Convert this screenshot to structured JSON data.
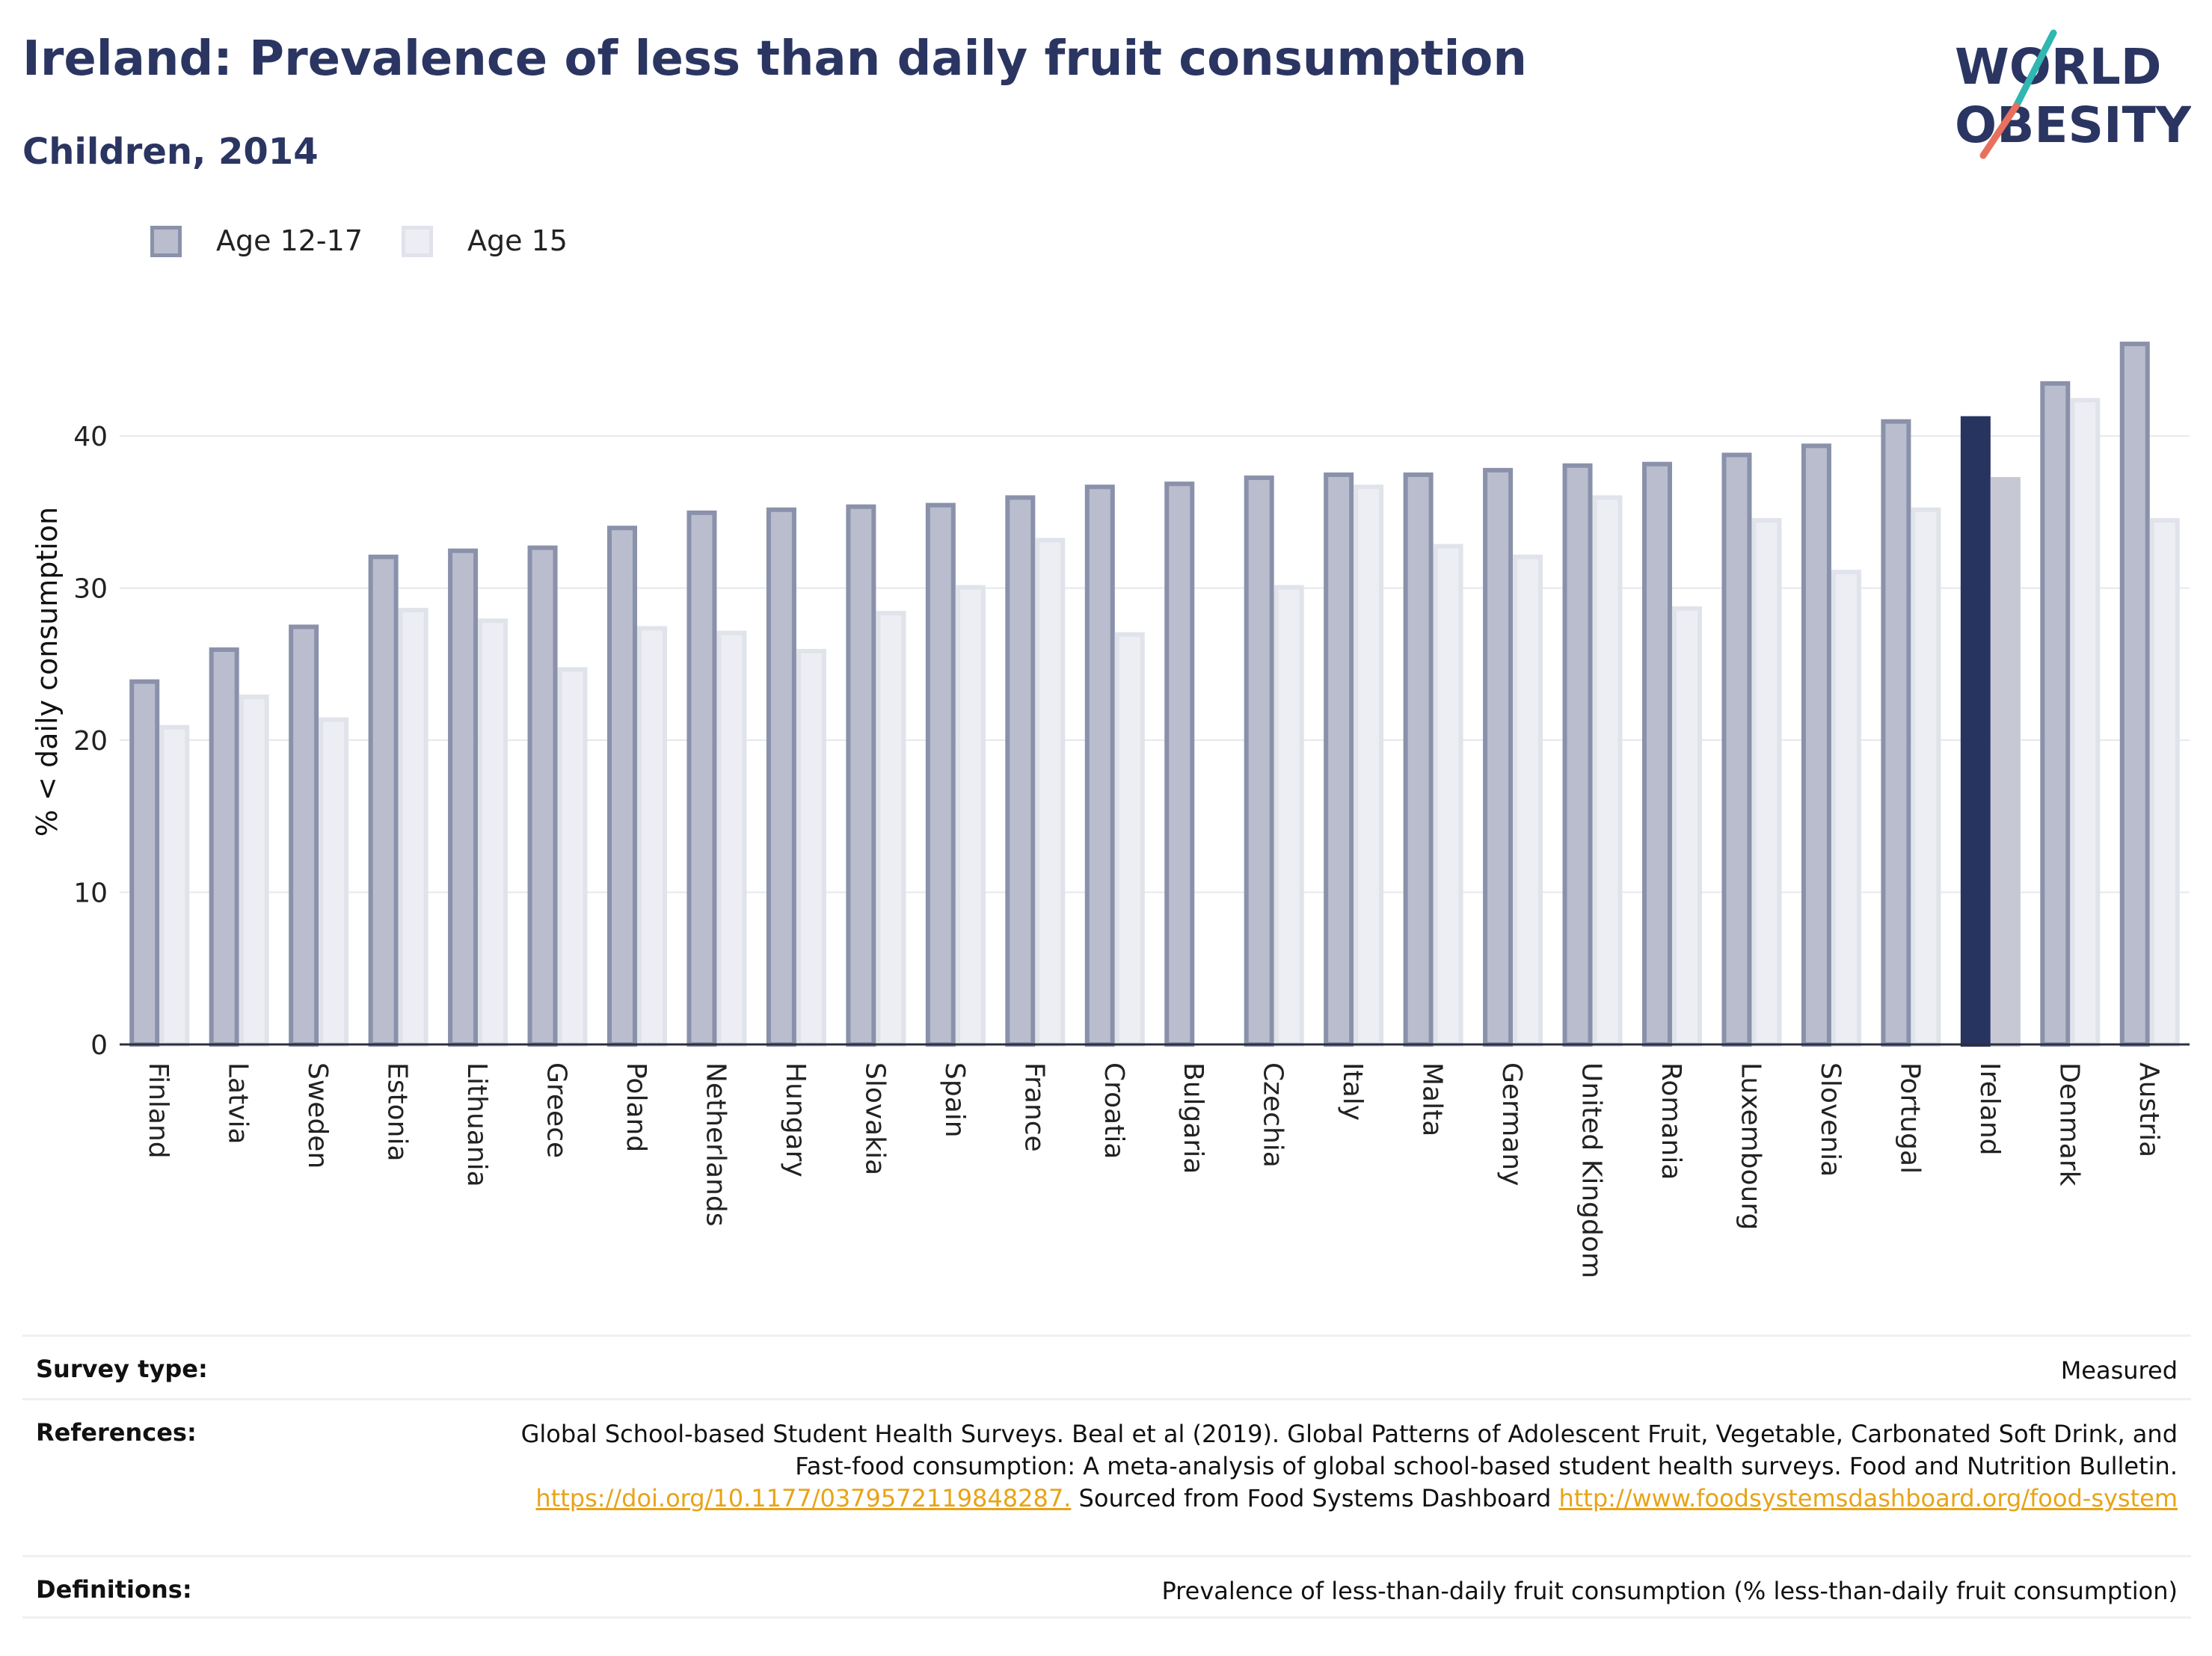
{
  "header": {
    "title": "Ireland: Prevalence of less than daily fruit consumption",
    "subtitle": "Children, 2014",
    "logo_line1": "WORLD",
    "logo_line2": "OBESITY"
  },
  "colors": {
    "title": "#2b3562",
    "series_age_12_17_fill": "#b9bdcd",
    "series_age_12_17_stroke": "#8a91aa",
    "series_age_15_fill": "#eceef3",
    "series_age_15_stroke": "#e0e3ea",
    "highlight_age_12_17": "#27345f",
    "highlight_age_15": "#c6c9d4",
    "logo_teal": "#2fb7b0",
    "logo_coral": "#e8705c",
    "link": "#e8a317"
  },
  "chart_data": {
    "type": "bar",
    "ylabel": "% < daily consumption",
    "xlabel": "",
    "ylim": [
      0,
      49
    ],
    "yticks": [
      0,
      10,
      20,
      30,
      40
    ],
    "grid": true,
    "legend_position": "top-left",
    "highlight_category": "Ireland",
    "categories": [
      "Finland",
      "Latvia",
      "Sweden",
      "Estonia",
      "Lithuania",
      "Greece",
      "Poland",
      "Netherlands",
      "Hungary",
      "Slovakia",
      "Spain",
      "France",
      "Croatia",
      "Bulgaria",
      "Czechia",
      "Italy",
      "Malta",
      "Germany",
      "United Kingdom",
      "Romania",
      "Luxembourg",
      "Slovenia",
      "Portugal",
      "Ireland",
      "Denmark",
      "Austria"
    ],
    "series": [
      {
        "name": "Age 12-17",
        "values": [
          24.0,
          26.1,
          27.6,
          32.2,
          32.6,
          32.8,
          34.1,
          35.1,
          35.3,
          35.5,
          35.6,
          36.1,
          36.8,
          37.0,
          37.4,
          37.6,
          37.6,
          37.9,
          38.2,
          38.3,
          38.9,
          39.5,
          41.1,
          41.3,
          43.6,
          46.2
        ]
      },
      {
        "name": "Age 15",
        "values": [
          21.0,
          23.0,
          21.5,
          28.7,
          28.0,
          24.8,
          27.5,
          27.2,
          26.0,
          28.5,
          30.2,
          33.3,
          27.1,
          null,
          30.2,
          36.8,
          32.9,
          32.2,
          36.1,
          28.8,
          34.6,
          31.2,
          35.3,
          37.3,
          42.5,
          34.6
        ]
      }
    ]
  },
  "footer": {
    "survey_type_label": "Survey type:",
    "survey_type_value": "Measured",
    "references_label": "References:",
    "references_text_1": "Global School-based Student Health Surveys. Beal et al (2019). Global Patterns of Adolescent Fruit, Vegetable, Carbonated Soft Drink, and Fast-food consumption: A meta-analysis of global school-based student health surveys. Food and Nutrition Bulletin.",
    "references_link_1": "https://doi.org/10.1177/0379572119848287.",
    "references_text_2": "Sourced from Food Systems Dashboard",
    "references_link_2": "http://www.foodsystemsdashboard.org/food-system",
    "definitions_label": "Definitions:",
    "definitions_value": "Prevalence of less-than-daily fruit consumption (% less-than-daily fruit consumption)"
  }
}
